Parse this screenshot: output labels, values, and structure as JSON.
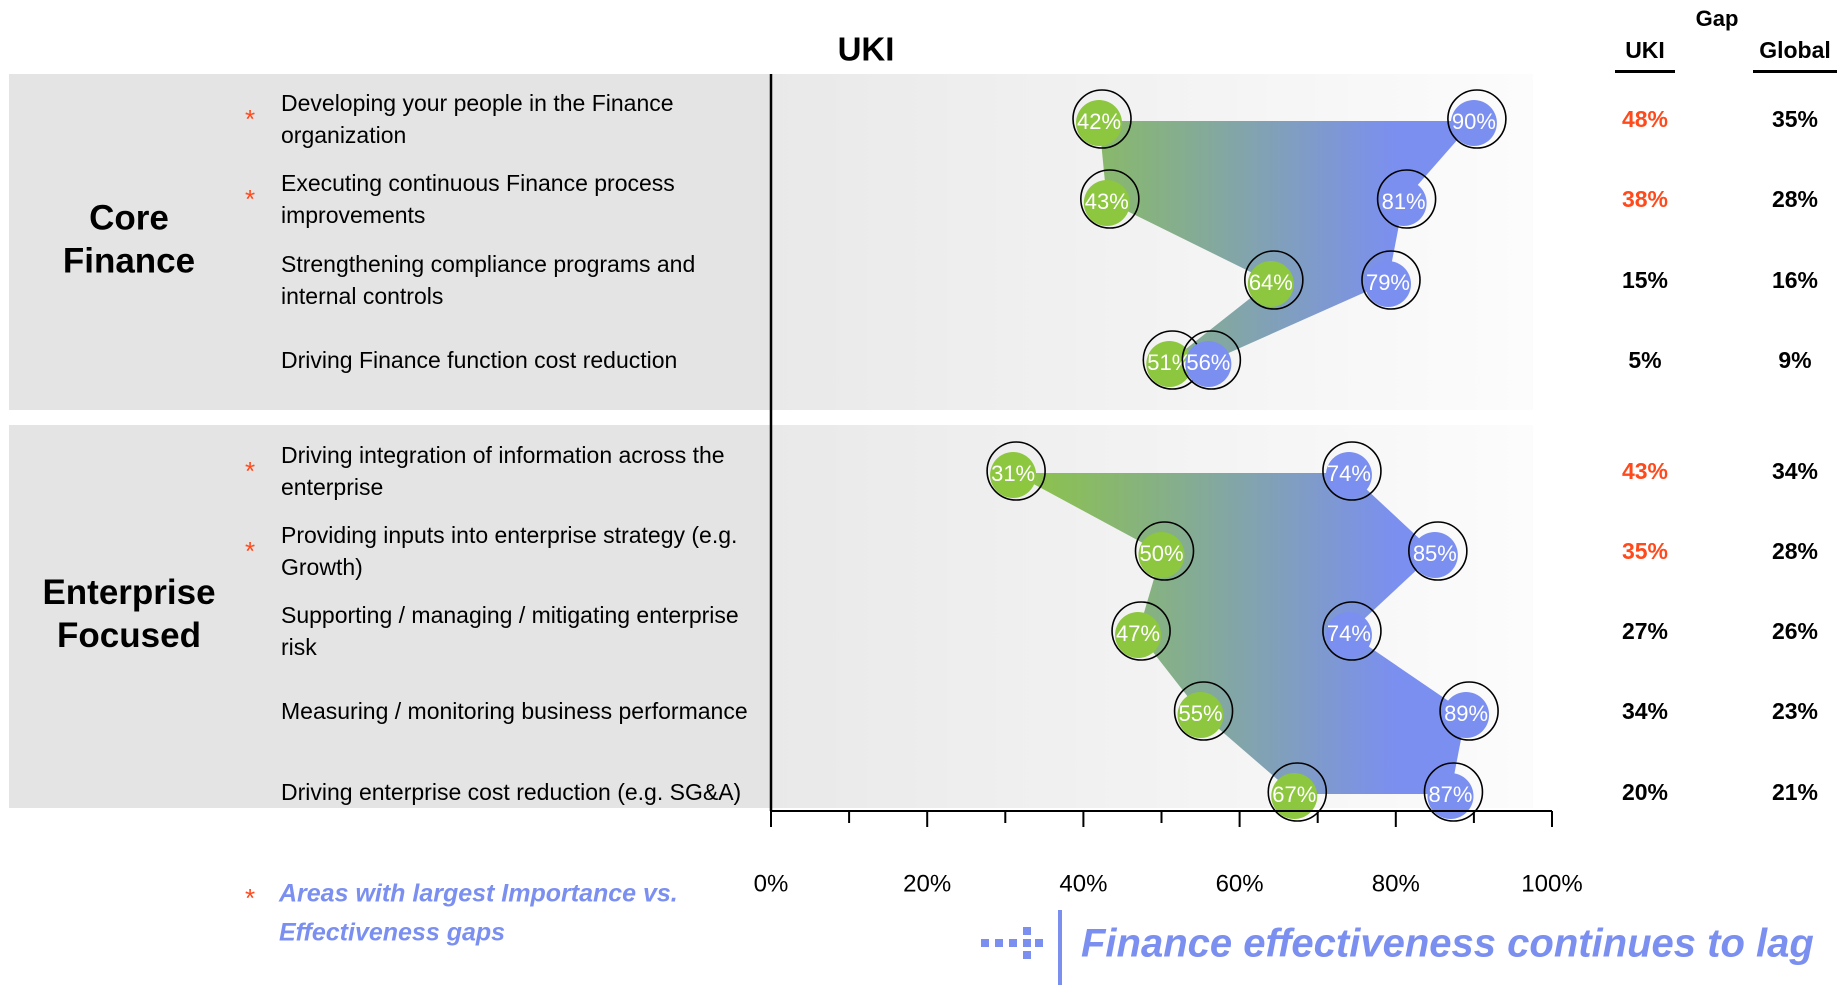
{
  "chart_data": {
    "type": "dumbbell",
    "title": "UKI",
    "colors": [
      "#8dc63f",
      "#7b8ff0"
    ],
    "highlight_color": "#ff4a1c",
    "xlim": [
      0,
      100
    ],
    "xticks": [
      {
        "value": 0,
        "label": "0%"
      },
      {
        "value": 20,
        "label": "20%"
      },
      {
        "value": 40,
        "label": "40%"
      },
      {
        "value": 60,
        "label": "60%"
      },
      {
        "value": 80,
        "label": "80%"
      },
      {
        "value": 100,
        "label": "100%"
      }
    ],
    "xminorticks": [
      10,
      30,
      50,
      70,
      90
    ],
    "gap_title": "Gap",
    "gap_columns": [
      "UKI",
      "Global"
    ],
    "groups": [
      {
        "name": "Core Finance",
        "categories": [
          "Developing your people in the Finance organization",
          "Executing continuous Finance process improvements",
          "Strengthening compliance programs and internal controls",
          "Driving Finance function cost reduction"
        ],
        "flags": [
          "*",
          "*",
          null,
          null
        ],
        "series": [
          {
            "values": [
              42,
              43,
              64,
              51
            ],
            "value_labels": [
              "42%",
              "43%",
              "64%",
              "51%"
            ]
          },
          {
            "values": [
              90,
              81,
              79,
              56
            ],
            "value_labels": [
              "90%",
              "81%",
              "79%",
              "56%"
            ]
          }
        ],
        "gaps": [
          {
            "values": [
              48,
              38,
              15,
              5
            ],
            "value_labels": [
              "48%",
              "38%",
              "15%",
              "5%"
            ]
          },
          {
            "values": [
              35,
              28,
              16,
              9
            ],
            "value_labels": [
              "35%",
              "28%",
              "16%",
              "9%"
            ]
          }
        ]
      },
      {
        "name": "Enterprise Focused",
        "categories": [
          "Driving integration of information across the enterprise",
          "Providing inputs into enterprise strategy (e.g. Growth)",
          "Supporting / managing / mitigating enterprise risk",
          "Measuring / monitoring business performance",
          "Driving enterprise cost reduction (e.g. SG&A)"
        ],
        "flags": [
          "*",
          "*",
          null,
          null,
          null
        ],
        "series": [
          {
            "values": [
              31,
              50,
              47,
              55,
              67
            ],
            "value_labels": [
              "31%",
              "50%",
              "47%",
              "55%",
              "67%"
            ]
          },
          {
            "values": [
              74,
              85,
              74,
              89,
              87
            ],
            "value_labels": [
              "74%",
              "85%",
              "74%",
              "89%",
              "87%"
            ]
          }
        ],
        "gaps": [
          {
            "values": [
              43,
              35,
              27,
              34,
              20
            ],
            "value_labels": [
              "43%",
              "35%",
              "27%",
              "34%",
              "20%"
            ]
          },
          {
            "values": [
              34,
              28,
              26,
              23,
              21
            ],
            "value_labels": [
              "34%",
              "28%",
              "26%",
              "23%",
              "21%"
            ]
          }
        ]
      }
    ],
    "footnote_marker": "*",
    "footnote": "Areas with largest Importance vs. Effectiveness gaps",
    "banner": "Finance effectiveness continues to lag"
  }
}
